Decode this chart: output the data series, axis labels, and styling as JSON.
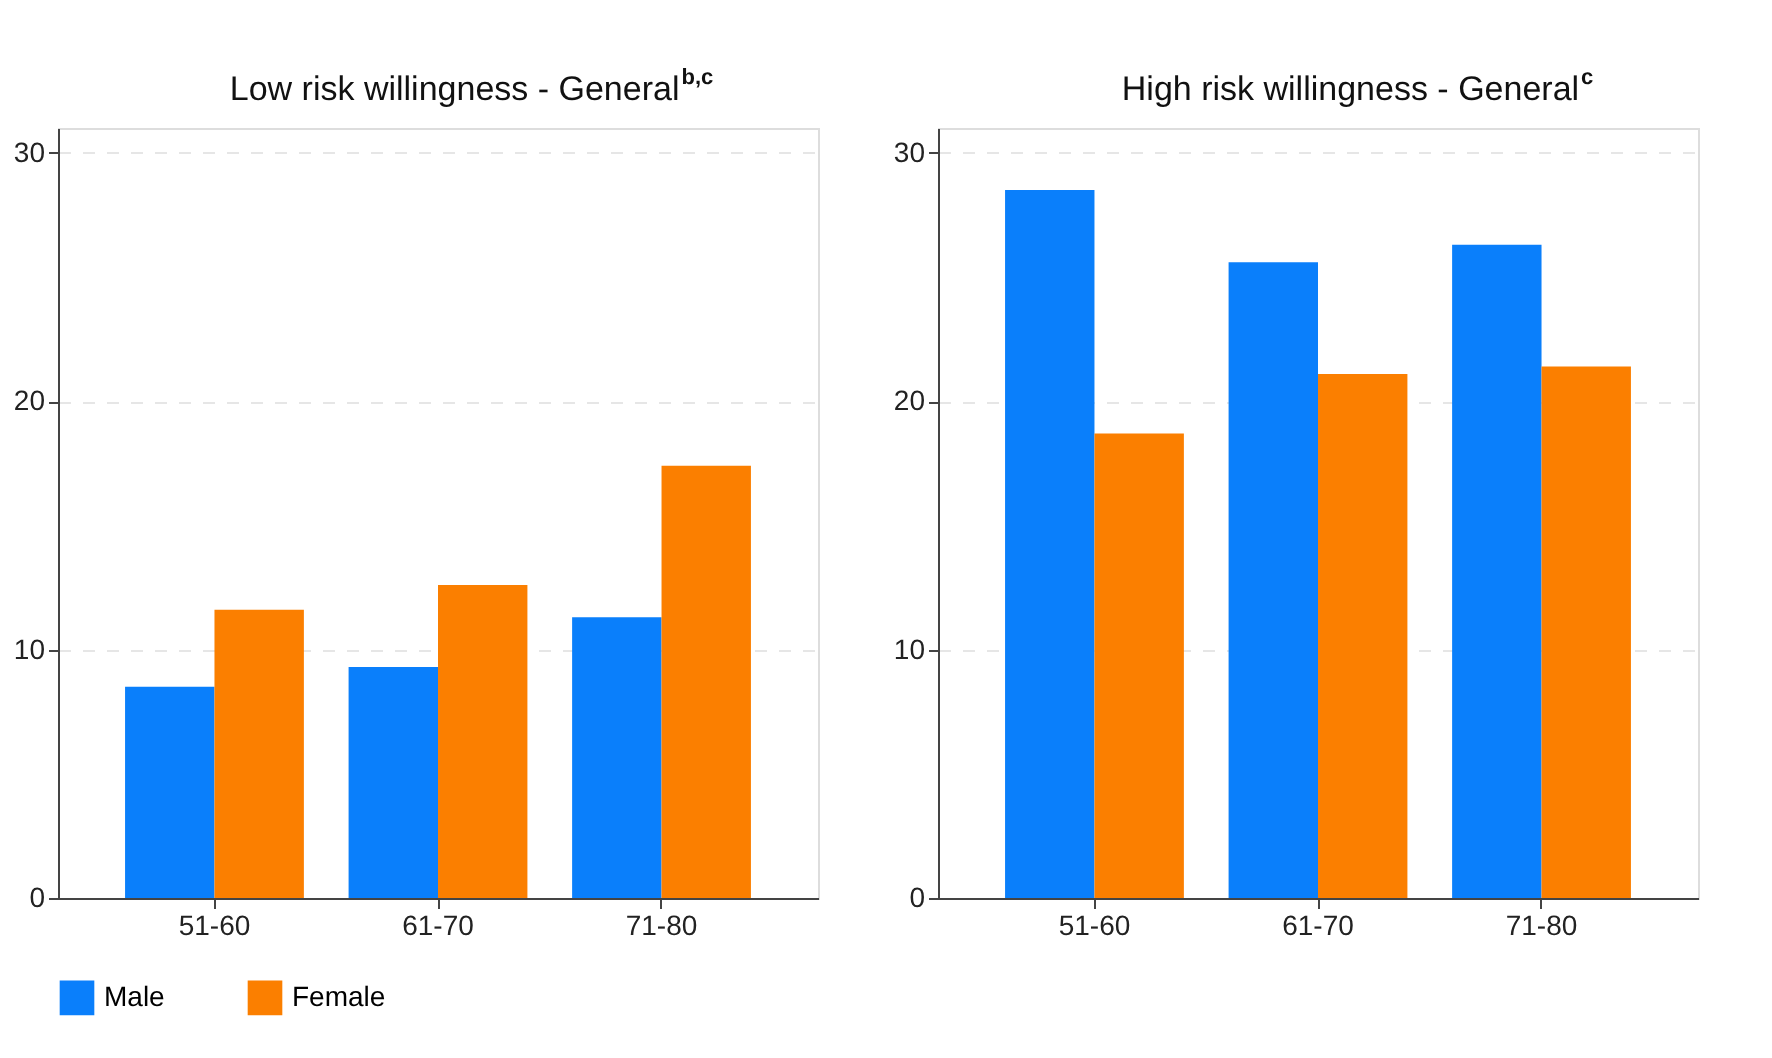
{
  "chart_data": [
    {
      "type": "bar",
      "title": "Low risk willingness - General$^{b,c}$",
      "categories": [
        "51-60",
        "61-70",
        "71-80"
      ],
      "series": [
        {
          "name": "Male",
          "color": "#0a7ffb",
          "values": [
            8.5,
            9.3,
            11.3
          ]
        },
        {
          "name": "Female",
          "color": "#fb7f00",
          "values": [
            11.6,
            12.6,
            17.4
          ]
        }
      ],
      "ylim": [
        0,
        31
      ],
      "yticks": [
        0,
        10,
        20,
        30
      ],
      "grid": "y",
      "legend": "bottom"
    },
    {
      "type": "bar",
      "title": "High risk willingness - General$^{c}$",
      "categories": [
        "51-60",
        "61-70",
        "71-80"
      ],
      "series": [
        {
          "name": "Male",
          "color": "#0a7ffb",
          "values": [
            28.5,
            25.6,
            26.3
          ]
        },
        {
          "name": "Female",
          "color": "#fb7f00",
          "values": [
            18.7,
            21.1,
            21.4
          ]
        }
      ],
      "ylim": [
        0,
        31
      ],
      "yticks": [
        0,
        10,
        20,
        30
      ],
      "grid": "y",
      "legend": "bottom"
    }
  ]
}
